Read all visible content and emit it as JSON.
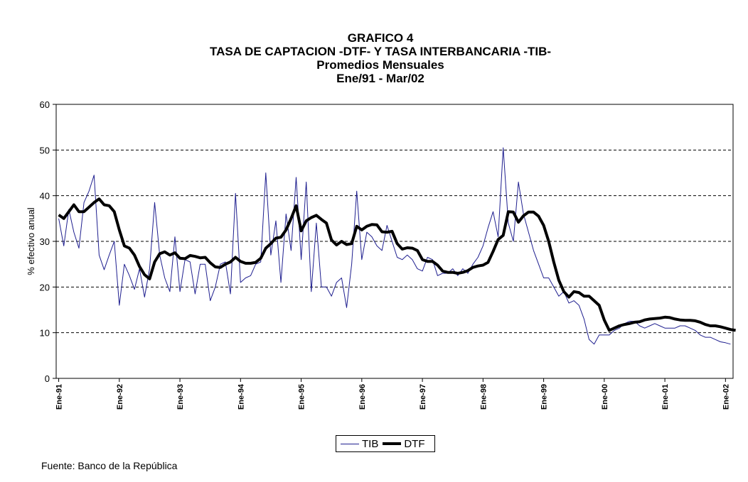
{
  "chart": {
    "title": "GRAFICO 4",
    "subtitle": "TASA DE CAPTACION -DTF-  Y  TASA INTERBANCARIA -TIB-",
    "subtitle2": "Promedios Mensuales",
    "subtitle3": "Ene/91 - Mar/02",
    "source": "Fuente: Banco de la República"
  },
  "chart_data": {
    "type": "line",
    "title": "GRAFICO 4",
    "ylabel": "% efectivo anual",
    "xlabel": "",
    "ylim": [
      0,
      60
    ],
    "yticks": [
      0,
      10,
      20,
      30,
      40,
      50,
      60
    ],
    "grid": "horizontal dashed",
    "legend_position": "bottom-center",
    "x_tick_labels": [
      "Ene-91",
      "Ene-92",
      "Ene-93",
      "Ene-94",
      "Ene-95",
      "Ene-96",
      "Ene-97",
      "Ene-98",
      "Ene-99",
      "Ene-00",
      "Ene-01",
      "Ene-02"
    ],
    "x_start": "Ene-91",
    "x_end": "Mar-02",
    "series": [
      {
        "name": "TIB",
        "color": "#1f1f8f",
        "style": "thin",
        "values": [
          35.0,
          29.0,
          37.0,
          32.0,
          28.5,
          38.5,
          41.0,
          44.5,
          27.0,
          23.8,
          27.0,
          30.0,
          16.0,
          25.0,
          22.5,
          19.5,
          24.0,
          17.8,
          24.0,
          38.5,
          27.0,
          22.0,
          19.0,
          31.0,
          19.0,
          26.0,
          25.5,
          18.5,
          25.0,
          25.0,
          17.0,
          20.0,
          25.0,
          25.5,
          18.5,
          40.5,
          21.0,
          22.0,
          22.5,
          25.0,
          25.5,
          45.0,
          27.0,
          34.5,
          21.0,
          36.0,
          28.0,
          44.0,
          26.0,
          43.0,
          19.0,
          34.0,
          20.0,
          20.0,
          18.0,
          21.0,
          22.0,
          15.5,
          25.0,
          41.0,
          26.0,
          32.0,
          31.0,
          29.0,
          28.0,
          33.5,
          30.0,
          26.5,
          26.0,
          27.0,
          26.0,
          24.0,
          23.5,
          26.5,
          26.0,
          22.5,
          23.0,
          23.0,
          24.0,
          22.5,
          24.0,
          23.0,
          25.0,
          26.5,
          29.0,
          33.0,
          36.5,
          31.0,
          50.5,
          34.0,
          30.0,
          43.0,
          36.0,
          32.0,
          28.0,
          25.0,
          22.0,
          22.0,
          20.0,
          18.0,
          19.0,
          16.5,
          17.0,
          16.0,
          13.0,
          8.5,
          7.5,
          9.5,
          9.5,
          9.5,
          10.5,
          11.0,
          12.0,
          12.5,
          12.5,
          11.5,
          11.0,
          11.5,
          12.0,
          11.5,
          11.0,
          11.0,
          11.0,
          11.5,
          11.5,
          11.0,
          10.5,
          9.5,
          9.0,
          9.0,
          8.5,
          8.0,
          7.8,
          7.5
        ]
      },
      {
        "name": "DTF",
        "color": "#000000",
        "style": "thick",
        "values": [
          35.8,
          35.0,
          36.5,
          38.0,
          36.5,
          36.5,
          37.5,
          38.5,
          39.3,
          38.0,
          37.8,
          36.5,
          32.5,
          29.0,
          28.5,
          27.0,
          24.5,
          22.7,
          21.8,
          25.5,
          27.3,
          27.7,
          27.0,
          27.5,
          26.3,
          26.2,
          26.9,
          26.7,
          26.4,
          26.5,
          25.3,
          24.4,
          24.3,
          25.0,
          25.5,
          26.5,
          25.6,
          25.2,
          25.2,
          25.4,
          26.3,
          28.5,
          29.5,
          30.7,
          30.9,
          32.5,
          35.0,
          37.8,
          32.3,
          34.5,
          35.2,
          35.7,
          34.8,
          34.0,
          30.3,
          29.2,
          30.0,
          29.3,
          29.5,
          33.3,
          32.5,
          33.3,
          33.7,
          33.6,
          32.1,
          32.0,
          32.2,
          29.5,
          28.3,
          28.6,
          28.5,
          28.0,
          26.0,
          25.6,
          25.6,
          24.8,
          23.5,
          23.2,
          23.2,
          23.0,
          23.2,
          23.6,
          24.3,
          24.6,
          24.8,
          25.4,
          27.8,
          30.4,
          31.3,
          36.5,
          36.4,
          34.2,
          35.6,
          36.4,
          36.4,
          35.5,
          33.5,
          30.0,
          25.5,
          21.5,
          19.0,
          17.8,
          19.0,
          18.8,
          18.0,
          18.0,
          17.0,
          16.0,
          12.8,
          10.5,
          11.0,
          11.5,
          11.8,
          12.0,
          12.3,
          12.4,
          12.8,
          13.0,
          13.1,
          13.2,
          13.4,
          13.3,
          13.0,
          12.8,
          12.7,
          12.7,
          12.6,
          12.3,
          11.8,
          11.5,
          11.5,
          11.3,
          11.0,
          10.7,
          10.5
        ]
      }
    ]
  }
}
